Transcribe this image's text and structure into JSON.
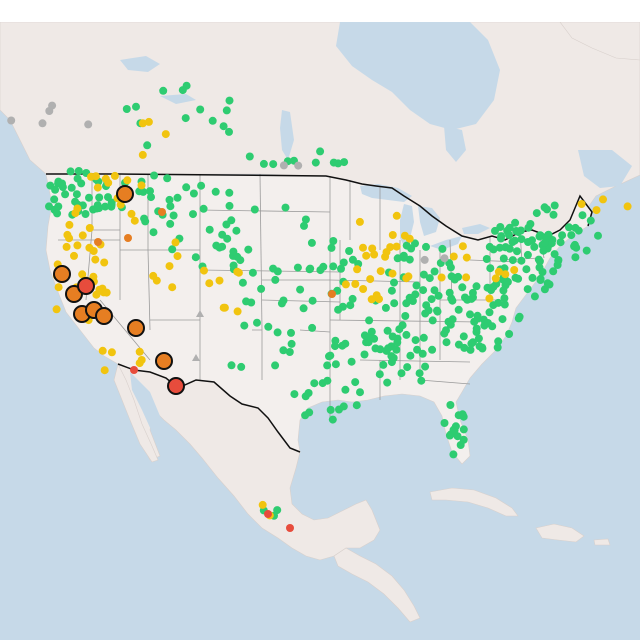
{
  "map": {
    "region": "North America",
    "colors": {
      "water": "#c6d9e8",
      "land": "#efe9e6",
      "us_land": "#f3efed",
      "state_lines": "#9b9b9b",
      "country_borders": "#111111",
      "good": "#2ecc71",
      "moderate": "#f1c40f",
      "usg": "#e67e22",
      "unhealthy": "#e74c3c",
      "no_data": "#b0b0b0"
    },
    "marker_categories": [
      "good",
      "moderate",
      "unhealthy-for-sensitive-groups",
      "unhealthy",
      "no-data"
    ],
    "counts": {
      "good": 420,
      "moderate": 96,
      "usg": 12,
      "unhealthy": 4,
      "no_data": 9
    }
  }
}
